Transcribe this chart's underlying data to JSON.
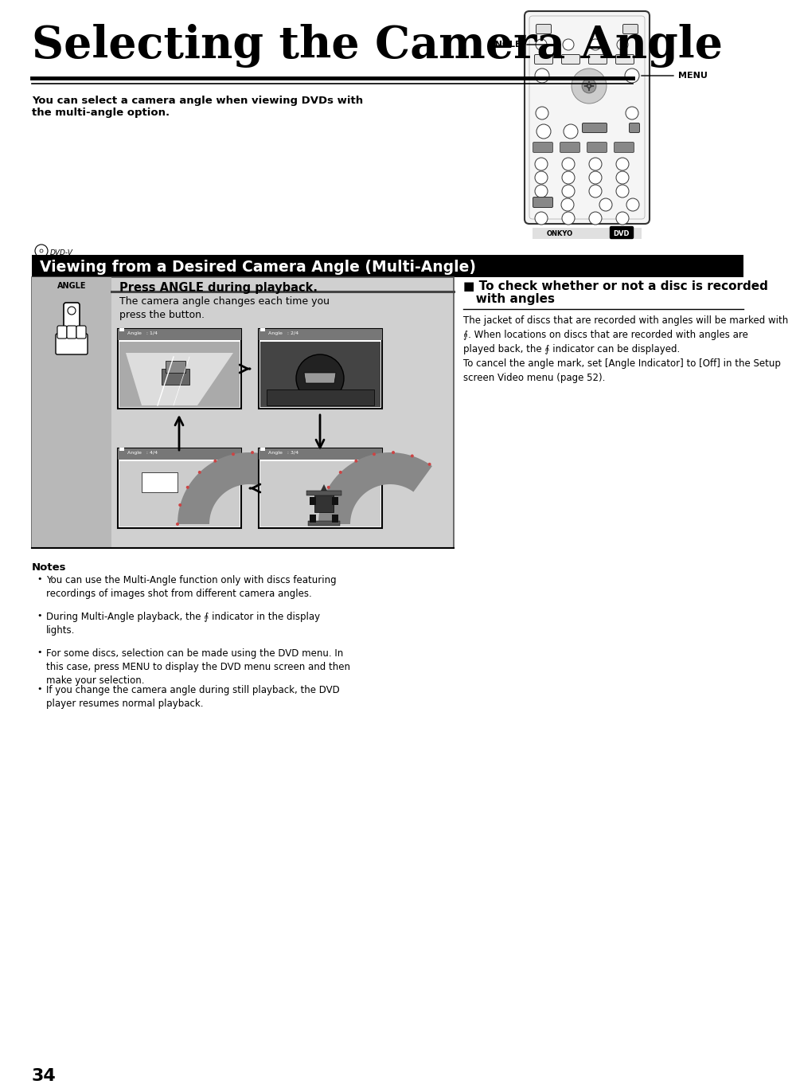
{
  "title": "Selecting the Camera Angle",
  "subtitle": "You can select a camera angle when viewing DVDs with\nthe multi-angle option.",
  "section_header": "Viewing from a Desired Camera Angle (Multi-Angle)",
  "press_angle_bold": "Press ANGLE during playback.",
  "press_angle_text": "The camera angle changes each time you\npress the button.",
  "angle_label": "ANGLE",
  "menu_label": "MENU",
  "check_header_line1": "■ To check whether or not a disc is recorded",
  "check_header_line2": "   with angles",
  "check_text": "The jacket of discs that are recorded with angles will be marked with\n⨙. When locations on discs that are recorded with angles are\nplayed back, the ⨙ indicator can be displayed.\nTo cancel the angle mark, set [Angle Indicator] to [Off] in the Setup\nscreen Video menu (page 52).",
  "notes_title": "Notes",
  "notes": [
    "You can use the Multi-Angle function only with discs featuring\nrecordings of images shot from different camera angles.",
    "During Multi-Angle playback, the ⨙ indicator in the display\nlights.",
    "For some discs, selection can be made using the DVD menu. In\nthis case, press MENU to display the DVD menu screen and then\nmake your selection.",
    "If you change the camera angle during still playback, the DVD\nplayer resumes normal playback."
  ],
  "page_number": "34",
  "bg_color": "#ffffff",
  "header_bg": "#000000",
  "header_fg": "#ffffff"
}
